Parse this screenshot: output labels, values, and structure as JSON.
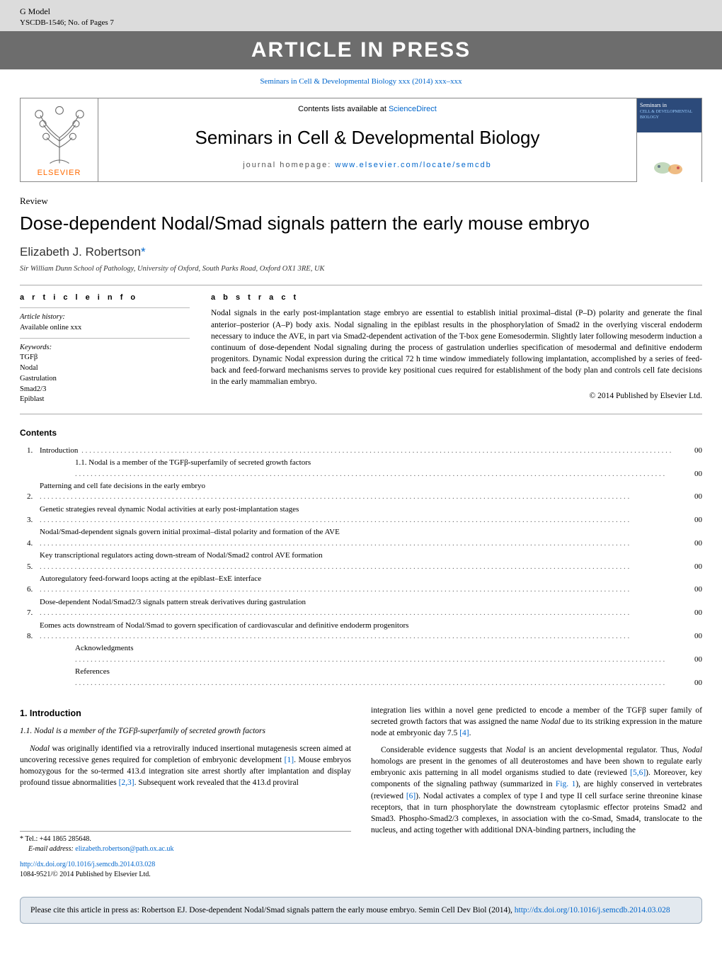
{
  "header": {
    "gmodel": "G Model",
    "ref": "YSCDB-1546;   No. of Pages 7",
    "banner": "ARTICLE IN PRESS",
    "citation_prefix": "Seminars in Cell & Developmental Biology xxx (2014) xxx–xxx"
  },
  "journal_box": {
    "lists_label": "Contents lists available at ",
    "lists_link": "ScienceDirect",
    "journal_name": "Seminars in Cell & Developmental Biology",
    "homepage_label": "journal homepage: ",
    "homepage_url": "www.elsevier.com/locate/semcdb",
    "elsevier": "ELSEVIER",
    "cover_small1": "Seminars in",
    "cover_small2": "CELL & DEVELOPMENTAL BIOLOGY"
  },
  "article": {
    "type": "Review",
    "title": "Dose-dependent Nodal/Smad signals pattern the early mouse embryo",
    "author": "Elizabeth J. Robertson",
    "star": "*",
    "affiliation": "Sir William Dunn School of Pathology, University of Oxford, South Parks Road, Oxford OX1 3RE, UK"
  },
  "info": {
    "heading": "a r t i c l e   i n f o",
    "history_label": "Article history:",
    "history_value": "Available online xxx",
    "keywords_label": "Keywords:",
    "keywords": [
      "TGFβ",
      "Nodal",
      "Gastrulation",
      "Smad2/3",
      "Epiblast"
    ]
  },
  "abstract": {
    "heading": "a b s t r a c t",
    "text": "Nodal signals in the early post-implantation stage embryo are essential to establish initial proximal–distal (P–D) polarity and generate the final anterior–posterior (A–P) body axis. Nodal signaling in the epiblast results in the phosphorylation of Smad2 in the overlying visceral endoderm necessary to induce the AVE, in part via Smad2-dependent activation of the T-box gene Eomesodermin. Slightly later following mesoderm induction a continuum of dose-dependent Nodal signaling during the process of gastrulation underlies specification of mesodermal and definitive endoderm progenitors. Dynamic Nodal expression during the critical 72 h time window immediately following implantation, accomplished by a series of feed-back and feed-forward mechanisms serves to provide key positional cues required for establishment of the body plan and controls cell fate decisions in the early mammalian embryo.",
    "copyright": "© 2014 Published by Elsevier Ltd."
  },
  "contents": {
    "heading": "Contents",
    "items": [
      {
        "num": "1.",
        "text": "Introduction",
        "page": "00",
        "sub": false
      },
      {
        "num": "",
        "text": "1.1.   Nodal is a member of the TGFβ-superfamily of secreted growth factors",
        "page": "00",
        "sub": true
      },
      {
        "num": "2.",
        "text": "Patterning and cell fate decisions in the early embryo",
        "page": "00",
        "sub": false
      },
      {
        "num": "3.",
        "text": "Genetic strategies reveal dynamic Nodal activities at early post-implantation stages",
        "page": "00",
        "sub": false
      },
      {
        "num": "4.",
        "text": "Nodal/Smad-dependent signals govern initial proximal–distal polarity and formation of the AVE",
        "page": "00",
        "sub": false
      },
      {
        "num": "5.",
        "text": "Key transcriptional regulators acting down-stream of Nodal/Smad2 control AVE formation",
        "page": "00",
        "sub": false
      },
      {
        "num": "6.",
        "text": "Autoregulatory feed-forward loops acting at the epiblast–ExE interface",
        "page": "00",
        "sub": false
      },
      {
        "num": "7.",
        "text": "Dose-dependent Nodal/Smad2/3 signals pattern streak derivatives during gastrulation",
        "page": "00",
        "sub": false
      },
      {
        "num": "8.",
        "text": "Eomes acts downstream of Nodal/Smad to govern specification of cardiovascular and definitive endoderm progenitors",
        "page": "00",
        "sub": false
      },
      {
        "num": "",
        "text": "Acknowledgments",
        "page": "00",
        "sub": false,
        "noind": true
      },
      {
        "num": "",
        "text": "References",
        "page": "00",
        "sub": false,
        "noind": true
      }
    ]
  },
  "body": {
    "h_intro": "1.  Introduction",
    "h_sub": "1.1.  Nodal is a member of the TGFβ-superfamily of secreted growth factors",
    "left_p1a": "Nodal",
    "left_p1b": " was originally identified via a retrovirally induced insertional mutagenesis screen aimed at uncovering recessive genes required for completion of embryonic development ",
    "ref1": "[1]",
    "left_p1c": ". Mouse embryos homozygous for the so-termed 413.d integration site arrest shortly after implantation and display profound tissue abnormalities ",
    "ref23": "[2,3]",
    "left_p1d": ". Subsequent work revealed that the 413.d proviral",
    "right_p1a": "integration lies within a novel gene predicted to encode a member of the TGFβ super family of secreted growth factors that was assigned the name ",
    "right_p1b": "Nodal",
    "right_p1c": " due to its striking expression in the mature node at embryonic day 7.5 ",
    "ref4": "[4]",
    "right_p1d": ".",
    "right_p2a": "Considerable evidence suggests that ",
    "right_p2b": "Nodal",
    "right_p2c": " is an ancient developmental regulator. Thus, ",
    "right_p2d": "Nodal",
    "right_p2e": " homologs are present in the genomes of all deuterostomes and have been shown to regulate early embryonic axis patterning in all model organisms studied to date (reviewed ",
    "ref56": "[5,6]",
    "right_p2f": "). Moreover, key components of the signaling pathway (summarized in ",
    "fig1": "Fig. 1",
    "right_p2g": "), are highly conserved in vertebrates (reviewed ",
    "ref6": "[6]",
    "right_p2h": "). Nodal activates a complex of type I and type II cell surface serine threonine kinase receptors, that in turn phosphorylate the downstream cytoplasmic effector proteins Smad2 and Smad3. Phospho-Smad2/3 complexes, in association with the co-Smad, Smad4, translocate to the nucleus, and acting together with additional DNA-binding partners, including the"
  },
  "footnotes": {
    "tel_label": "* Tel.: +44 1865 285648.",
    "email_label": "E-mail address: ",
    "email": "elizabeth.robertson@path.ox.ac.uk"
  },
  "doi": {
    "url": "http://dx.doi.org/10.1016/j.semcdb.2014.03.028",
    "issn": "1084-9521/© 2014 Published by Elsevier Ltd."
  },
  "citebox": {
    "text_a": "Please cite this article in press as: Robertson EJ. Dose-dependent Nodal/Smad signals pattern the early mouse embryo. Semin Cell Dev Biol (2014), ",
    "url": "http://dx.doi.org/10.1016/j.semcdb.2014.03.028"
  },
  "colors": {
    "link": "#0066cc",
    "banner_bg": "#6d6d6d",
    "header_bg": "#dcdcdc",
    "citebox_bg": "#e3e9ef",
    "elsevier_orange": "#ff6a00"
  }
}
